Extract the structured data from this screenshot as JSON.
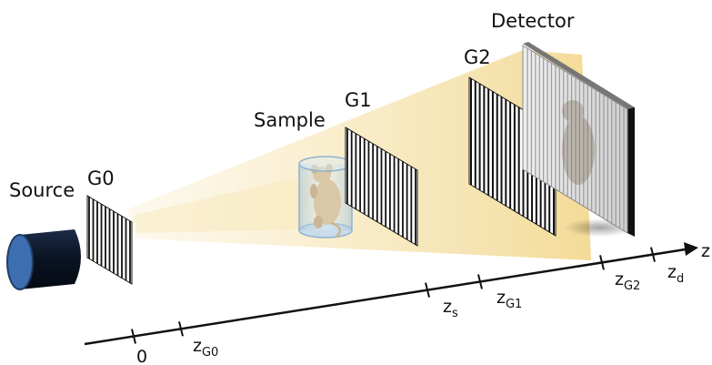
{
  "labels": {
    "source": "Source",
    "g0": "G0",
    "sample": "Sample",
    "g1": "G1",
    "g2": "G2",
    "detector": "Detector"
  },
  "axis": {
    "name": "z",
    "ticks": [
      {
        "main": "0",
        "sub": ""
      },
      {
        "main": "z",
        "sub": "G0"
      },
      {
        "main": "z",
        "sub": "s"
      },
      {
        "main": "z",
        "sub": "G1"
      },
      {
        "main": "z",
        "sub": "G2"
      },
      {
        "main": "z",
        "sub": "d"
      }
    ]
  },
  "colors": {
    "beam": "#f5dfa0",
    "source_body": "#0d1a2e",
    "source_face": "#3d6fb0",
    "grating_line": "#111111",
    "detector_frame": "#777777",
    "sample_tube": "#a9c9df",
    "axis": "#111111"
  }
}
